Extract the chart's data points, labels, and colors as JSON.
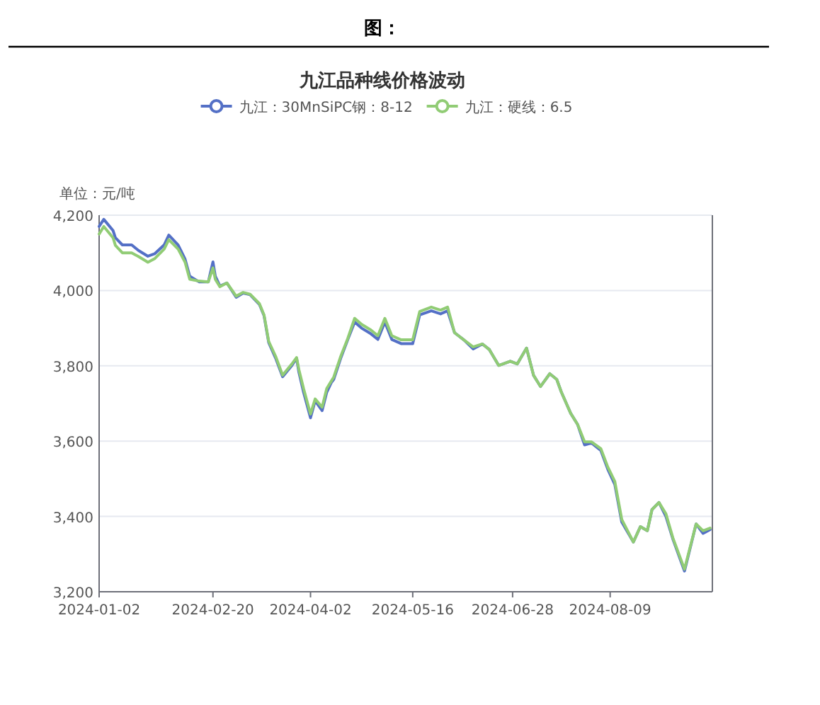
{
  "chart_data": {
    "type": "line",
    "title": "九江品种线价格波动",
    "subtitle": "图：",
    "ylabel": "单位：元/吨",
    "x": [
      "2024-01-02",
      "2024-01-04",
      "2024-01-08",
      "2024-01-09",
      "2024-01-12",
      "2024-01-16",
      "2024-01-19",
      "2024-01-23",
      "2024-01-26",
      "2024-01-30",
      "2024-02-01",
      "2024-02-05",
      "2024-02-08",
      "2024-02-10",
      "2024-02-14",
      "2024-02-18",
      "2024-02-20",
      "2024-02-21",
      "2024-02-23",
      "2024-02-26",
      "2024-03-01",
      "2024-03-04",
      "2024-03-07",
      "2024-03-11",
      "2024-03-13",
      "2024-03-15",
      "2024-03-18",
      "2024-03-21",
      "2024-03-25",
      "2024-03-27",
      "2024-03-28",
      "2024-03-30",
      "2024-04-02",
      "2024-04-04",
      "2024-04-07",
      "2024-04-09",
      "2024-04-11",
      "2024-04-12",
      "2024-04-15",
      "2024-04-18",
      "2024-04-21",
      "2024-04-24",
      "2024-04-28",
      "2024-05-01",
      "2024-05-04",
      "2024-05-07",
      "2024-05-11",
      "2024-05-16",
      "2024-05-19",
      "2024-05-24",
      "2024-05-28",
      "2024-05-31",
      "2024-06-03",
      "2024-06-07",
      "2024-06-11",
      "2024-06-15",
      "2024-06-18",
      "2024-06-22",
      "2024-06-27",
      "2024-06-30",
      "2024-07-04",
      "2024-07-07",
      "2024-07-10",
      "2024-07-14",
      "2024-07-17",
      "2024-07-19",
      "2024-07-23",
      "2024-07-26",
      "2024-07-29",
      "2024-08-01",
      "2024-08-05",
      "2024-08-08",
      "2024-08-11",
      "2024-08-14",
      "2024-08-19",
      "2024-08-22",
      "2024-08-25",
      "2024-08-27",
      "2024-08-30",
      "2024-09-02",
      "2024-09-05",
      "2024-09-10",
      "2024-09-15",
      "2024-09-18",
      "2024-09-21"
    ],
    "series": [
      {
        "name": "九江：30MnSiPC钢：8-12",
        "color": "#5470c6",
        "values": [
          4170,
          4189,
          4159,
          4140,
          4121,
          4121,
          4106,
          4091,
          4098,
          4121,
          4147,
          4121,
          4083,
          4038,
          4023,
          4023,
          4076,
          4038,
          4012,
          4020,
          3982,
          3993,
          3989,
          3963,
          3933,
          3862,
          3820,
          3771,
          3801,
          3820,
          3783,
          3730,
          3662,
          3707,
          3681,
          3730,
          3756,
          3764,
          3820,
          3869,
          3916,
          3900,
          3885,
          3870,
          3916,
          3870,
          3859,
          3859,
          3935,
          3946,
          3938,
          3946,
          3888,
          3869,
          3845,
          3858,
          3843,
          3801,
          3812,
          3805,
          3847,
          3775,
          3745,
          3779,
          3764,
          3730,
          3674,
          3644,
          3590,
          3595,
          3575,
          3525,
          3485,
          3385,
          3332,
          3373,
          3362,
          3418,
          3437,
          3400,
          3340,
          3255,
          3380,
          3355,
          3365
        ]
      },
      {
        "name": "九江：硬线：6.5",
        "color": "#91cc75",
        "values": [
          4150,
          4170,
          4140,
          4120,
          4100,
          4100,
          4090,
          4075,
          4085,
          4110,
          4135,
          4110,
          4075,
          4030,
          4025,
          4023,
          4060,
          4030,
          4010,
          4020,
          3985,
          3995,
          3990,
          3965,
          3935,
          3865,
          3825,
          3775,
          3805,
          3822,
          3790,
          3740,
          3672,
          3712,
          3690,
          3740,
          3760,
          3770,
          3825,
          3872,
          3926,
          3910,
          3895,
          3880,
          3926,
          3880,
          3869,
          3869,
          3944,
          3956,
          3948,
          3956,
          3888,
          3869,
          3850,
          3858,
          3843,
          3801,
          3812,
          3805,
          3847,
          3775,
          3745,
          3779,
          3764,
          3730,
          3674,
          3644,
          3598,
          3598,
          3580,
          3531,
          3493,
          3392,
          3332,
          3373,
          3362,
          3418,
          3437,
          3407,
          3343,
          3260,
          3380,
          3362,
          3369
        ]
      }
    ],
    "xlim": [
      "2024-01-02",
      "2024-09-22"
    ],
    "xticks": [
      {
        "value": "2024-01-02",
        "label": "2024-01-02"
      },
      {
        "value": "2024-02-20",
        "label": "2024-02-20"
      },
      {
        "value": "2024-04-02",
        "label": "2024-04-02"
      },
      {
        "value": "2024-05-16",
        "label": "2024-05-16"
      },
      {
        "value": "2024-06-28",
        "label": "2024-06-28"
      },
      {
        "value": "2024-08-09",
        "label": "2024-08-09"
      }
    ],
    "ylim": [
      3200,
      4200
    ],
    "yticks": [
      {
        "value": 3200,
        "label": "3,200"
      },
      {
        "value": 3400,
        "label": "3,400"
      },
      {
        "value": 3600,
        "label": "3,600"
      },
      {
        "value": 3800,
        "label": "3,800"
      },
      {
        "value": 4000,
        "label": "4,000"
      },
      {
        "value": 4200,
        "label": "4,200"
      }
    ],
    "grid": "y",
    "legend": "top",
    "marker": "none",
    "line_style": "solid"
  }
}
